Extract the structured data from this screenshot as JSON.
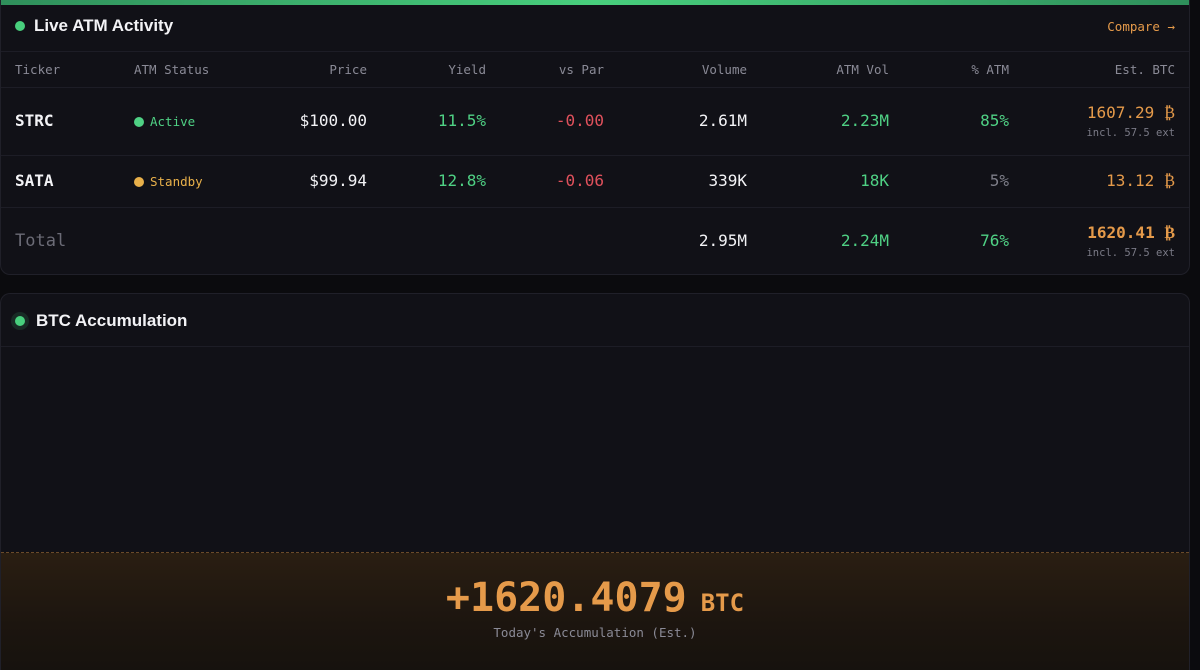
{
  "atm": {
    "title": "Live ATM Activity",
    "compare_label": "Compare →",
    "columns": [
      "Ticker",
      "ATM Status",
      "Price",
      "Yield",
      "vs Par",
      "Volume",
      "ATM Vol",
      "% ATM",
      "Est. BTC"
    ],
    "rows": [
      {
        "ticker": "STRC",
        "status": "Active",
        "price": "$100.00",
        "yield": "11.5%",
        "vs_par": "-0.00",
        "volume": "2.61M",
        "atm_vol": "2.23M",
        "pct_atm": "85%",
        "est_btc": "1607.29 ₿",
        "est_sub": "incl. 57.5 ext"
      },
      {
        "ticker": "SATA",
        "status": "Standby",
        "price": "$99.94",
        "yield": "12.8%",
        "vs_par": "-0.06",
        "volume": "339K",
        "atm_vol": "18K",
        "pct_atm": "5%",
        "est_btc": "13.12 ₿"
      }
    ],
    "total": {
      "label": "Total",
      "volume": "2.95M",
      "atm_vol": "2.24M",
      "pct_atm": "76%",
      "est_btc": "1620.41 ₿",
      "est_sub": "incl. 57.5 ext"
    }
  },
  "accumulation": {
    "title": "BTC Accumulation",
    "value": "+1620.4079",
    "unit": "BTC",
    "caption": "Today's Accumulation (Est.)"
  },
  "colors": {
    "accent_orange": "#e59a4a",
    "green": "#4fd184",
    "red": "#e0515c",
    "active_dot": "#4fd184",
    "standby_dot": "#e8b04a"
  }
}
